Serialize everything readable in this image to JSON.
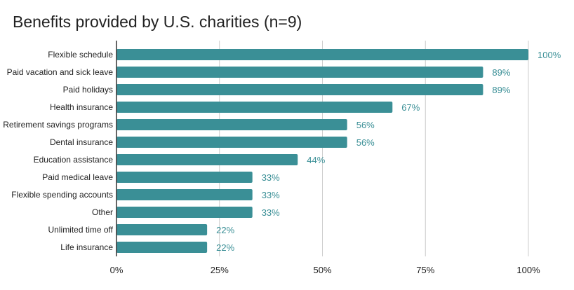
{
  "chart_data": {
    "type": "bar",
    "orientation": "horizontal",
    "title": "Benefits provided by U.S. charities (n=9)",
    "categories": [
      "Flexible schedule",
      "Paid vacation and sick leave",
      "Paid holidays",
      "Health insurance",
      "Retirement savings programs",
      "Dental insurance",
      "Education assistance",
      "Paid medical leave",
      "Flexible spending accounts",
      "Other",
      "Unlimited time off",
      "Life insurance"
    ],
    "values": [
      100,
      89,
      89,
      67,
      56,
      56,
      44,
      33,
      33,
      33,
      22,
      22
    ],
    "value_labels": [
      "100%",
      "89%",
      "89%",
      "67%",
      "56%",
      "56%",
      "44%",
      "33%",
      "33%",
      "33%",
      "22%",
      "22%"
    ],
    "xlim": [
      0,
      100
    ],
    "x_ticks": [
      0,
      25,
      50,
      75,
      100
    ],
    "x_tick_labels": [
      "0%",
      "25%",
      "50%",
      "75%",
      "100%"
    ],
    "xlabel": "",
    "ylabel": "",
    "grid": "vertical",
    "bar_color": "#3a8f96",
    "label_color": "#3a8f96"
  }
}
